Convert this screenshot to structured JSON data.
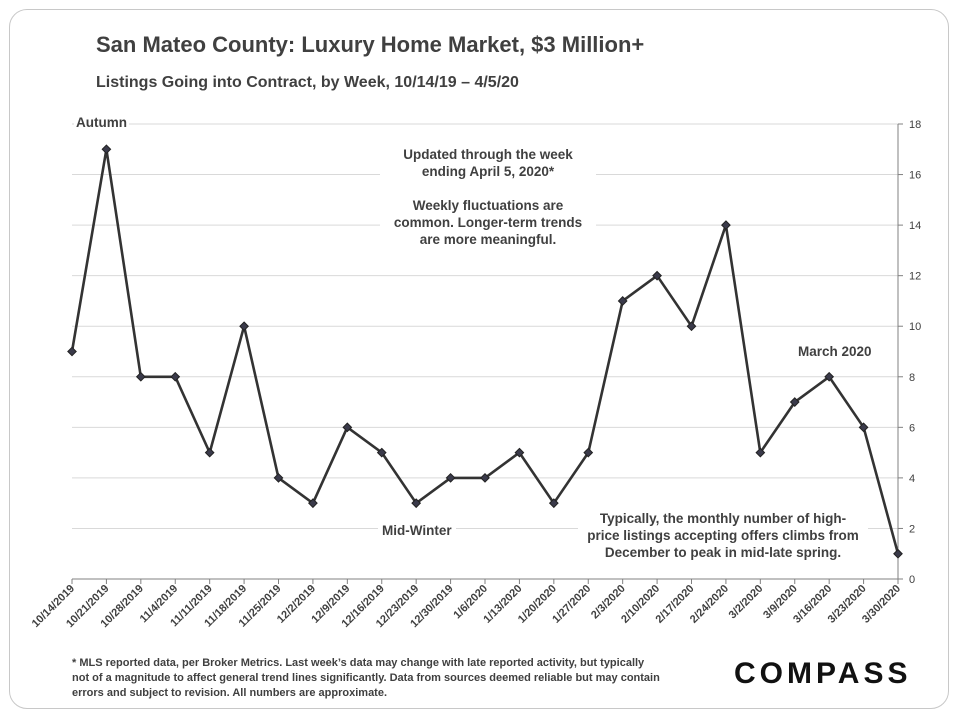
{
  "header": {
    "title": "San Mateo County: Luxury Home Market, $3 Million+",
    "subtitle": "Listings Going into Contract,  by Week, 10/14/19 – 4/5/20"
  },
  "annotations": {
    "autumn": "Autumn",
    "mid_winter": "Mid-Winter",
    "march": "March 2020",
    "updated_1": "Updated through the week",
    "updated_2": "ending April 5, 2020*",
    "fluct_1": "Weekly fluctuations are",
    "fluct_2": "common. Longer-term trends",
    "fluct_3": "are more meaningful.",
    "typical_1": "Typically, the monthly number of high-",
    "typical_2": "price listings accepting offers climbs from",
    "typical_3": "December to peak in mid-late spring."
  },
  "footnote": {
    "line1": "* MLS reported data, per Broker Metrics. Last week’s data may change with late reported activity, but typically",
    "line2": "not of a magnitude to affect general trend lines significantly. Data from sources deemed reliable but may contain",
    "line3": "errors and subject to revision. All numbers are approximate."
  },
  "logo": {
    "text": "COMPASS"
  },
  "chart_data": {
    "type": "line",
    "title": "San Mateo County: Luxury Home Market, $3 Million+",
    "subtitle": "Listings Going into Contract,  by Week, 10/14/19 – 4/5/20",
    "categories": [
      "10/14/2019",
      "10/21/2019",
      "10/28/2019",
      "11/4/2019",
      "11/11/2019",
      "11/18/2019",
      "11/25/2019",
      "12/2/2019",
      "12/9/2019",
      "12/16/2019",
      "12/23/2019",
      "12/30/2019",
      "1/6/2020",
      "1/13/2020",
      "1/20/2020",
      "1/27/2020",
      "2/3/2020",
      "2/10/2020",
      "2/17/2020",
      "2/24/2020",
      "3/2/2020",
      "3/9/2020",
      "3/16/2020",
      "3/23/2020",
      "3/30/2020"
    ],
    "series": [
      {
        "values": [
          9,
          17,
          8,
          8,
          5,
          10,
          4,
          3,
          6,
          5,
          3,
          4,
          4,
          5,
          3,
          5,
          11,
          12,
          10,
          14,
          5,
          7,
          8,
          6,
          1
        ]
      }
    ],
    "y_ticks": [
      0,
      2,
      4,
      6,
      8,
      10,
      12,
      14,
      16,
      18
    ],
    "ylim": [
      0,
      18
    ],
    "y_axis_side": "right",
    "grid": true,
    "line_color": "#333333",
    "marker": "diamond"
  }
}
